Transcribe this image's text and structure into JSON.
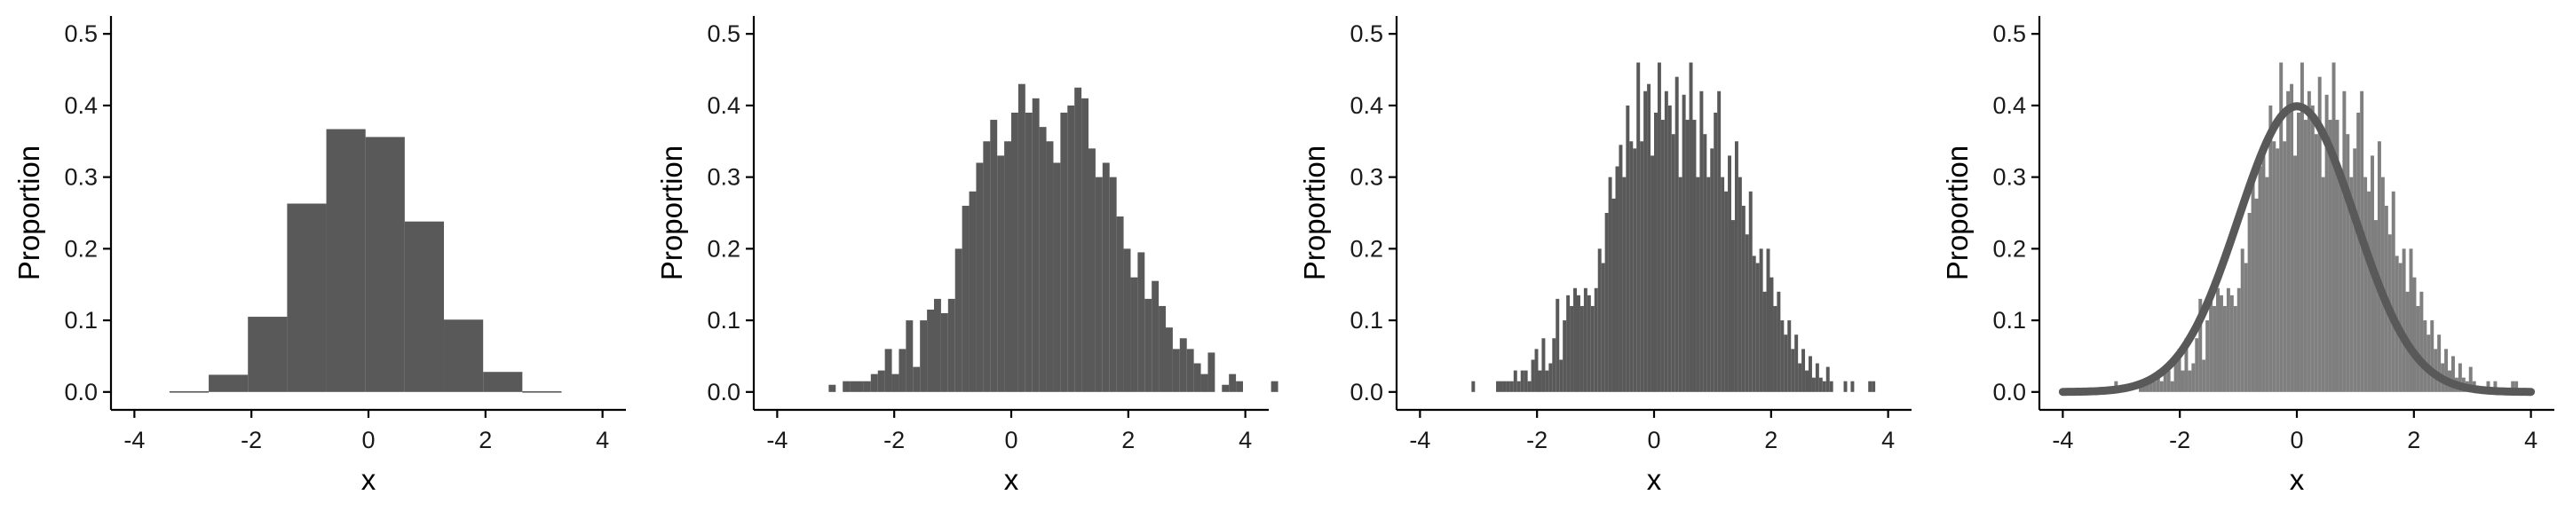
{
  "colors": {
    "bar": "#595959",
    "bar_light": "#7f7f7f",
    "curve": "#595959",
    "axis": "#000000"
  },
  "chart_data": [
    {
      "type": "bar",
      "xlabel": "x",
      "ylabel": "Proportion",
      "xlim": [
        -4.4,
        4.4
      ],
      "ylim": [
        -0.025,
        0.525
      ],
      "xticks": [
        -4,
        -2,
        0,
        2,
        4
      ],
      "yticks": [
        0.0,
        0.1,
        0.2,
        0.3,
        0.4,
        0.5
      ],
      "bin_start": -3.4,
      "bin_width": 0.67,
      "values": [
        0.001,
        0.024,
        0.105,
        0.263,
        0.367,
        0.356,
        0.238,
        0.101,
        0.028,
        0.001
      ]
    },
    {
      "type": "bar",
      "xlabel": "x",
      "ylabel": "Proportion",
      "xlim": [
        -4.4,
        4.4
      ],
      "ylim": [
        -0.025,
        0.525
      ],
      "xticks": [
        -4,
        -2,
        0,
        2,
        4
      ],
      "yticks": [
        0.0,
        0.1,
        0.2,
        0.3,
        0.4,
        0.5
      ],
      "bin_start": -3.12,
      "bin_width": 0.12,
      "values": [
        0.01,
        0,
        0.015,
        0.015,
        0.015,
        0.015,
        0.025,
        0.03,
        0.06,
        0.025,
        0.06,
        0.1,
        0.035,
        0.1,
        0.115,
        0.13,
        0.11,
        0.13,
        0.2,
        0.26,
        0.28,
        0.32,
        0.35,
        0.38,
        0.33,
        0.35,
        0.39,
        0.43,
        0.39,
        0.41,
        0.37,
        0.35,
        0.32,
        0.39,
        0.4,
        0.425,
        0.41,
        0.34,
        0.3,
        0.32,
        0.3,
        0.245,
        0.2,
        0.16,
        0.195,
        0.13,
        0.155,
        0.12,
        0.09,
        0.06,
        0.075,
        0.06,
        0.04,
        0.025,
        0.055,
        0,
        0.01,
        0.025,
        0.015,
        0,
        0,
        0,
        0,
        0.015
      ]
    },
    {
      "type": "bar",
      "xlabel": "x",
      "ylabel": "Proportion",
      "xlim": [
        -4.4,
        4.4
      ],
      "ylim": [
        -0.025,
        0.525
      ],
      "xticks": [
        -4,
        -2,
        0,
        2,
        4
      ],
      "yticks": [
        0.0,
        0.1,
        0.2,
        0.3,
        0.4,
        0.5
      ],
      "bin_start": -3.12,
      "bin_width": 0.06,
      "values": [
        0.015,
        0,
        0,
        0,
        0,
        0,
        0,
        0.015,
        0.015,
        0.015,
        0.015,
        0.015,
        0.03,
        0.015,
        0.03,
        0.03,
        0.015,
        0.045,
        0.06,
        0.03,
        0.075,
        0.03,
        0.04,
        0.075,
        0.13,
        0.045,
        0.1,
        0.135,
        0.12,
        0.145,
        0.135,
        0.12,
        0.145,
        0.135,
        0.12,
        0.145,
        0.2,
        0.18,
        0.25,
        0.3,
        0.27,
        0.315,
        0.345,
        0.3,
        0.4,
        0.35,
        0.34,
        0.46,
        0.35,
        0.42,
        0.43,
        0.33,
        0.39,
        0.46,
        0.38,
        0.42,
        0.4,
        0.36,
        0.44,
        0.3,
        0.415,
        0.38,
        0.46,
        0.38,
        0.3,
        0.42,
        0.36,
        0.3,
        0.34,
        0.39,
        0.42,
        0.3,
        0.28,
        0.33,
        0.24,
        0.35,
        0.3,
        0.26,
        0.22,
        0.28,
        0.19,
        0.18,
        0.2,
        0.14,
        0.2,
        0.16,
        0.12,
        0.14,
        0.1,
        0.08,
        0.1,
        0.06,
        0.08,
        0.04,
        0.06,
        0.03,
        0.05,
        0.02,
        0.04,
        0.02,
        0.015,
        0.035,
        0.015,
        0,
        0,
        0,
        0.015,
        0,
        0.015,
        0,
        0,
        0,
        0,
        0.015,
        0.015
      ]
    },
    {
      "type": "bar",
      "xlabel": "x",
      "ylabel": "Proportion",
      "xlim": [
        -4.4,
        4.4
      ],
      "ylim": [
        -0.025,
        0.525
      ],
      "xticks": [
        -4,
        -2,
        0,
        2,
        4
      ],
      "yticks": [
        0.0,
        0.1,
        0.2,
        0.3,
        0.4,
        0.5
      ],
      "bin_start": -3.12,
      "bin_width": 0.06,
      "values": [
        0.015,
        0,
        0,
        0,
        0,
        0,
        0,
        0.015,
        0.015,
        0.015,
        0.015,
        0.015,
        0.03,
        0.015,
        0.03,
        0.03,
        0.015,
        0.045,
        0.06,
        0.03,
        0.075,
        0.03,
        0.04,
        0.075,
        0.13,
        0.045,
        0.1,
        0.135,
        0.12,
        0.145,
        0.135,
        0.12,
        0.145,
        0.135,
        0.12,
        0.145,
        0.2,
        0.18,
        0.25,
        0.3,
        0.27,
        0.315,
        0.345,
        0.3,
        0.4,
        0.35,
        0.34,
        0.46,
        0.35,
        0.42,
        0.43,
        0.33,
        0.39,
        0.46,
        0.38,
        0.42,
        0.4,
        0.36,
        0.44,
        0.3,
        0.415,
        0.38,
        0.46,
        0.38,
        0.3,
        0.42,
        0.36,
        0.3,
        0.34,
        0.39,
        0.42,
        0.3,
        0.28,
        0.33,
        0.24,
        0.35,
        0.3,
        0.26,
        0.22,
        0.28,
        0.19,
        0.18,
        0.2,
        0.14,
        0.2,
        0.16,
        0.12,
        0.14,
        0.1,
        0.08,
        0.1,
        0.06,
        0.08,
        0.04,
        0.06,
        0.03,
        0.05,
        0.02,
        0.04,
        0.02,
        0.015,
        0.035,
        0.015,
        0,
        0,
        0,
        0.015,
        0,
        0.015,
        0,
        0,
        0,
        0,
        0.015,
        0.015
      ],
      "overlay": {
        "type": "line",
        "curve": "normal_density",
        "mean": 0,
        "sd": 1,
        "x_range": [
          -4,
          4
        ]
      }
    }
  ]
}
